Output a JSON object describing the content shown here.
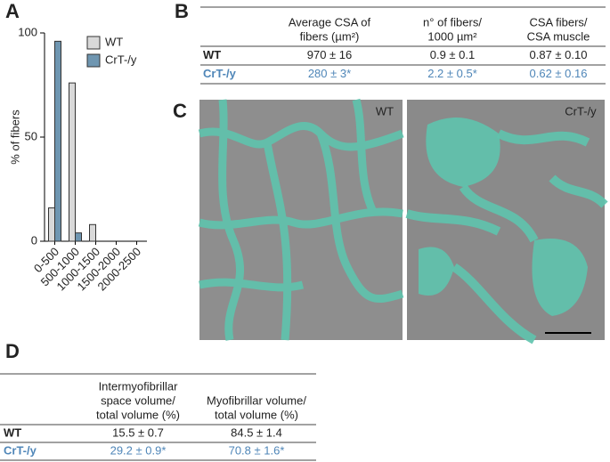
{
  "panels": [
    "A",
    "B",
    "C",
    "D"
  ],
  "chart_data": {
    "type": "bar",
    "ylabel": "% of fibers",
    "categories": [
      "0-500",
      "500-1000",
      "1000-1500",
      "1500-2000",
      "2000-2500"
    ],
    "series": [
      {
        "name": "WT",
        "color": "#d9d9d9",
        "values": [
          16,
          76,
          8,
          0,
          0
        ]
      },
      {
        "name": "CrT-/y",
        "color": "#6f96b1",
        "values": [
          96,
          4,
          0,
          0,
          0
        ]
      }
    ],
    "ylim": [
      0,
      100
    ],
    "yticks": [
      0,
      50,
      100
    ],
    "grid": false,
    "legend": "upper right"
  },
  "table_b": {
    "columns": [
      [
        "Average CSA of",
        "fibers (µm²)"
      ],
      [
        "n° of fibers/",
        "1000 µm²"
      ],
      [
        "CSA fibers/",
        "CSA muscle"
      ]
    ],
    "rows": [
      [
        "WT",
        "970 ± 16",
        "0.9 ± 0.1",
        "0.87 ± 0.10"
      ],
      [
        "CrT-/y",
        "280 ± 3*",
        "2.2 ± 0.5*",
        "0.62 ± 0.16"
      ]
    ]
  },
  "images": [
    "WT",
    "CrT-/y"
  ],
  "table_d": {
    "columns": [
      [
        "Intermyofibrillar",
        "space volume/",
        "total volume (%)"
      ],
      [
        "Myofibrillar volume/",
        "total volume (%)"
      ]
    ],
    "rows": [
      [
        "WT",
        "15.5 ± 0.7",
        "84.5 ± 1.4"
      ],
      [
        "CrT-/y",
        "29.2 ± 0.9*",
        "70.8 ± 1.6*"
      ]
    ]
  }
}
